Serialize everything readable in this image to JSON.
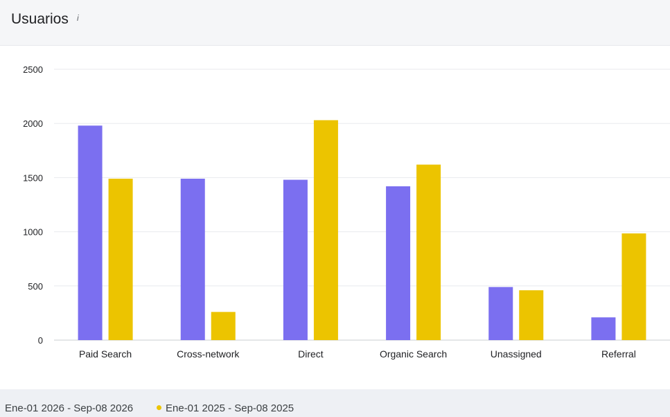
{
  "header": {
    "title": "Usuarios",
    "info_glyph": "i",
    "info_icon": "info-icon"
  },
  "chart_data": {
    "type": "bar",
    "categories": [
      "Paid Search",
      "Cross-network",
      "Direct",
      "Organic Search",
      "Unassigned",
      "Referral"
    ],
    "series": [
      {
        "name": "Ene-01 2026 - Sep-08 2026",
        "color": "#7b6ff0",
        "values": [
          1980,
          1490,
          1480,
          1420,
          490,
          210
        ]
      },
      {
        "name": "Ene-01 2025 - Sep-08 2025",
        "color": "#ecc400",
        "values": [
          1490,
          260,
          2030,
          1620,
          460,
          985
        ]
      }
    ],
    "yticks": [
      0,
      500,
      1000,
      1500,
      2000,
      2500
    ],
    "ylim": [
      0,
      2500
    ],
    "grid": true,
    "legend_position": "bottom"
  },
  "legend": {
    "items": [
      {
        "label": "Ene-01 2026 - Sep-08 2026",
        "color": "#7b6ff0",
        "show_dot": false
      },
      {
        "label": "Ene-01 2025 - Sep-08 2025",
        "color": "#ecc400",
        "show_dot": true
      }
    ]
  }
}
